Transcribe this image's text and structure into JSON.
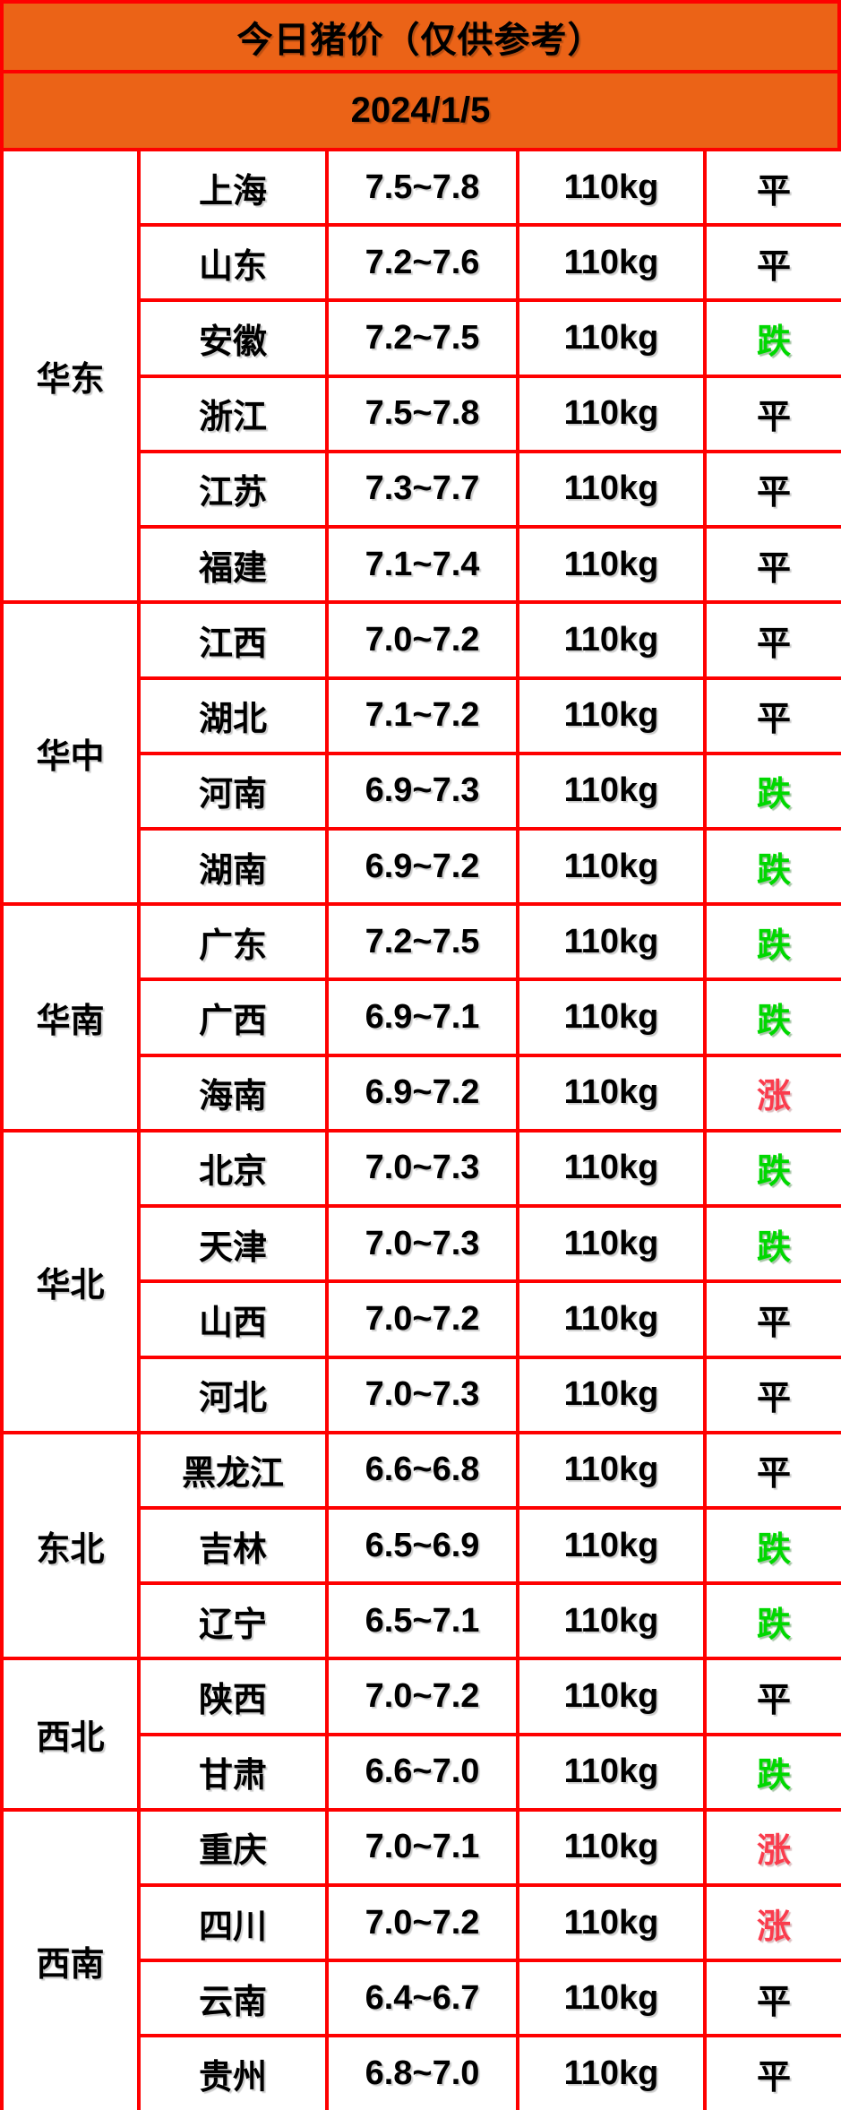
{
  "header": {
    "title": "今日猪价（仅供参考）",
    "date": "2024/1/5"
  },
  "colors": {
    "header_bg": "#EB6317",
    "border_red": "#FE0000",
    "status_flat": "#000000",
    "status_down": "#00D800",
    "status_up": "#FA3C4D"
  },
  "table": {
    "regions": [
      {
        "name": "华东",
        "rows": [
          {
            "province": "上海",
            "price": "7.5~7.8",
            "weight": "110kg",
            "status": "平",
            "trend": "flat"
          },
          {
            "province": "山东",
            "price": "7.2~7.6",
            "weight": "110kg",
            "status": "平",
            "trend": "flat"
          },
          {
            "province": "安徽",
            "price": "7.2~7.5",
            "weight": "110kg",
            "status": "跌",
            "trend": "down"
          },
          {
            "province": "浙江",
            "price": "7.5~7.8",
            "weight": "110kg",
            "status": "平",
            "trend": "flat"
          },
          {
            "province": "江苏",
            "price": "7.3~7.7",
            "weight": "110kg",
            "status": "平",
            "trend": "flat"
          },
          {
            "province": "福建",
            "price": "7.1~7.4",
            "weight": "110kg",
            "status": "平",
            "trend": "flat"
          }
        ]
      },
      {
        "name": "华中",
        "rows": [
          {
            "province": "江西",
            "price": "7.0~7.2",
            "weight": "110kg",
            "status": "平",
            "trend": "flat"
          },
          {
            "province": "湖北",
            "price": "7.1~7.2",
            "weight": "110kg",
            "status": "平",
            "trend": "flat"
          },
          {
            "province": "河南",
            "price": "6.9~7.3",
            "weight": "110kg",
            "status": "跌",
            "trend": "down"
          },
          {
            "province": "湖南",
            "price": "6.9~7.2",
            "weight": "110kg",
            "status": "跌",
            "trend": "down"
          }
        ]
      },
      {
        "name": "华南",
        "rows": [
          {
            "province": "广东",
            "price": "7.2~7.5",
            "weight": "110kg",
            "status": "跌",
            "trend": "down"
          },
          {
            "province": "广西",
            "price": "6.9~7.1",
            "weight": "110kg",
            "status": "跌",
            "trend": "down"
          },
          {
            "province": "海南",
            "price": "6.9~7.2",
            "weight": "110kg",
            "status": "涨",
            "trend": "up"
          }
        ]
      },
      {
        "name": "华北",
        "rows": [
          {
            "province": "北京",
            "price": "7.0~7.3",
            "weight": "110kg",
            "status": "跌",
            "trend": "down"
          },
          {
            "province": "天津",
            "price": "7.0~7.3",
            "weight": "110kg",
            "status": "跌",
            "trend": "down"
          },
          {
            "province": "山西",
            "price": "7.0~7.2",
            "weight": "110kg",
            "status": "平",
            "trend": "flat"
          },
          {
            "province": "河北",
            "price": "7.0~7.3",
            "weight": "110kg",
            "status": "平",
            "trend": "flat"
          }
        ]
      },
      {
        "name": "东北",
        "rows": [
          {
            "province": "黑龙江",
            "price": "6.6~6.8",
            "weight": "110kg",
            "status": "平",
            "trend": "flat"
          },
          {
            "province": "吉林",
            "price": "6.5~6.9",
            "weight": "110kg",
            "status": "跌",
            "trend": "down"
          },
          {
            "province": "辽宁",
            "price": "6.5~7.1",
            "weight": "110kg",
            "status": "跌",
            "trend": "down"
          }
        ]
      },
      {
        "name": "西北",
        "rows": [
          {
            "province": "陕西",
            "price": "7.0~7.2",
            "weight": "110kg",
            "status": "平",
            "trend": "flat"
          },
          {
            "province": "甘肃",
            "price": "6.6~7.0",
            "weight": "110kg",
            "status": "跌",
            "trend": "down"
          }
        ]
      },
      {
        "name": "西南",
        "rows": [
          {
            "province": "重庆",
            "price": "7.0~7.1",
            "weight": "110kg",
            "status": "涨",
            "trend": "up"
          },
          {
            "province": "四川",
            "price": "7.0~7.2",
            "weight": "110kg",
            "status": "涨",
            "trend": "up"
          },
          {
            "province": "云南",
            "price": "6.4~6.7",
            "weight": "110kg",
            "status": "平",
            "trend": "flat"
          },
          {
            "province": "贵州",
            "price": "6.8~7.0",
            "weight": "110kg",
            "status": "平",
            "trend": "flat"
          }
        ]
      }
    ]
  }
}
